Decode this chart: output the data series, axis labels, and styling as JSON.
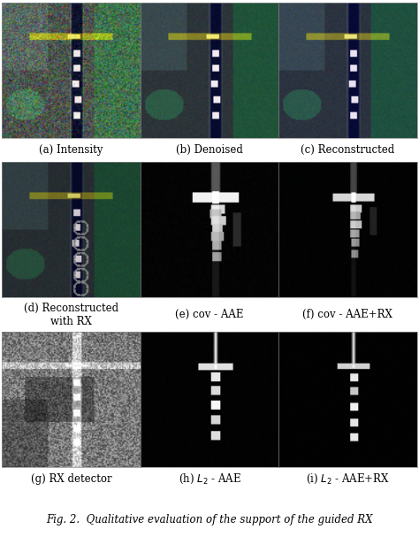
{
  "labels": [
    "(a) Intensity",
    "(b) Denoised",
    "(c) Reconstructed",
    "(d) Reconstructed\nwith RX",
    "(e) cov - AAE",
    "(f) cov - AAE+RX",
    "(g) RX detector",
    "(h) $L_2$ - AAE",
    "(i) $L_2$ - AAE+RX"
  ],
  "caption": "Fig. 2.  Qualitative evaluation of the support of the guided RX",
  "bg_color": "#ffffff",
  "label_fontsize": 8.5,
  "caption_fontsize": 8.5,
  "figsize": [
    4.74,
    6.07
  ],
  "dpi": 100
}
